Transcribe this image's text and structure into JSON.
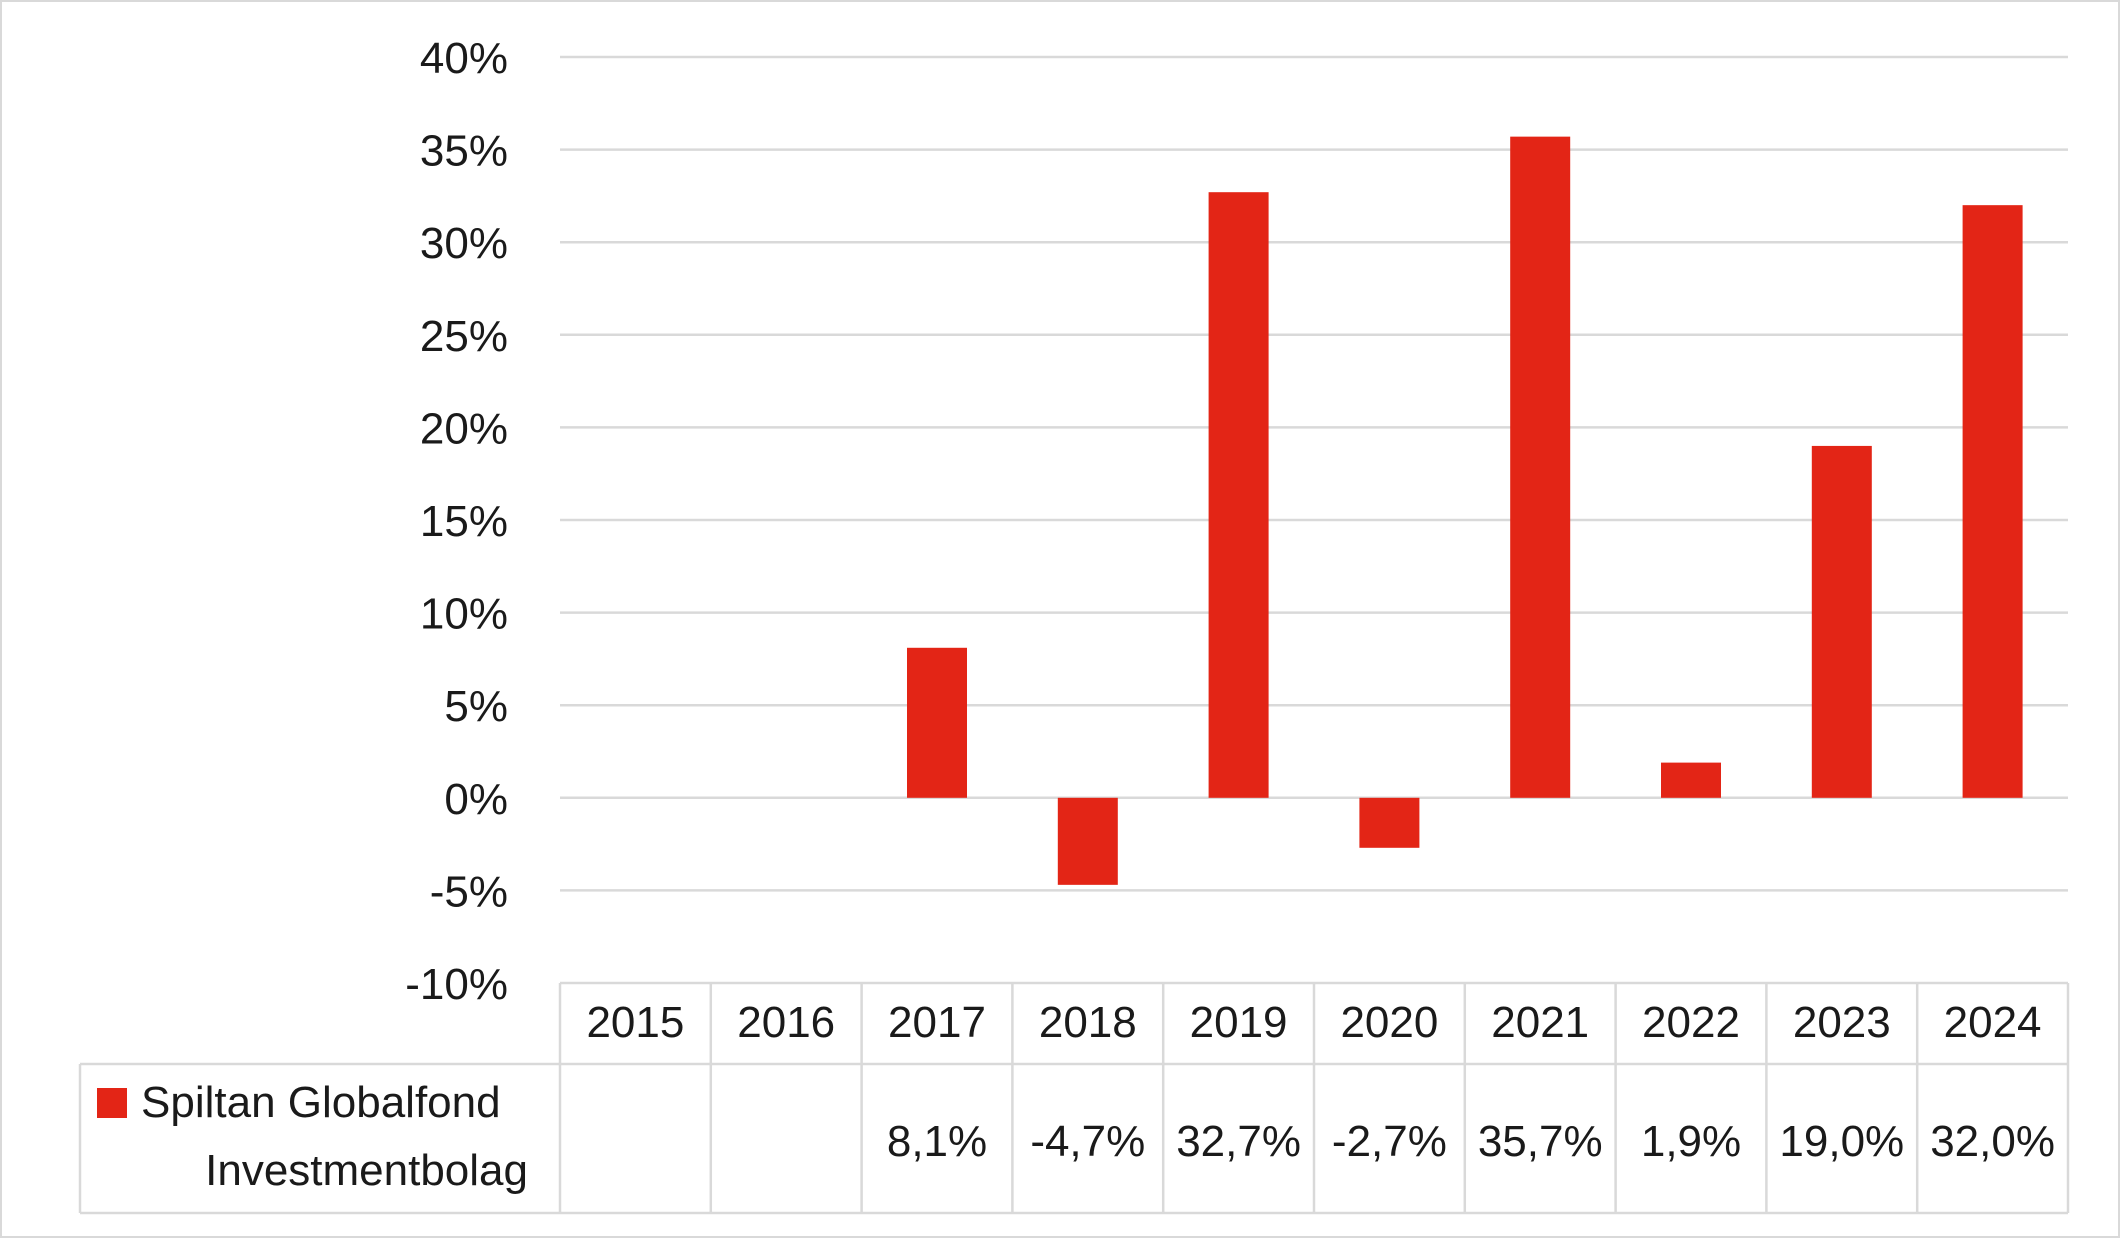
{
  "chart_data": {
    "type": "bar",
    "categories": [
      "2015",
      "2016",
      "2017",
      "2018",
      "2019",
      "2020",
      "2021",
      "2022",
      "2023",
      "2024"
    ],
    "series": [
      {
        "name": "Spiltan Globalfond Investmentbolag",
        "name_lines": [
          "Spiltan Globalfond",
          "Investmentbolag"
        ],
        "values": [
          null,
          null,
          8.1,
          -4.7,
          32.7,
          -2.7,
          35.7,
          1.9,
          19.0,
          32.0
        ],
        "labels": [
          "",
          "",
          "8,1%",
          "-4,7%",
          "32,7%",
          "-2,7%",
          "35,7%",
          "1,9%",
          "19,0%",
          "32,0%"
        ],
        "color": "#e32516"
      }
    ],
    "y_ticks": [
      {
        "value": 40,
        "label": "40%"
      },
      {
        "value": 35,
        "label": "35%"
      },
      {
        "value": 30,
        "label": "30%"
      },
      {
        "value": 25,
        "label": "25%"
      },
      {
        "value": 20,
        "label": "20%"
      },
      {
        "value": 15,
        "label": "15%"
      },
      {
        "value": 10,
        "label": "10%"
      },
      {
        "value": 5,
        "label": "5%"
      },
      {
        "value": 0,
        "label": "0%"
      },
      {
        "value": -5,
        "label": "-5%"
      },
      {
        "value": -10,
        "label": "-10%"
      }
    ],
    "ylim": [
      -10,
      40
    ],
    "grid": true,
    "legend": "data-table",
    "colors": {
      "bar": "#e32516",
      "grid": "#d9d9d9",
      "border": "#d9d9d9"
    }
  }
}
